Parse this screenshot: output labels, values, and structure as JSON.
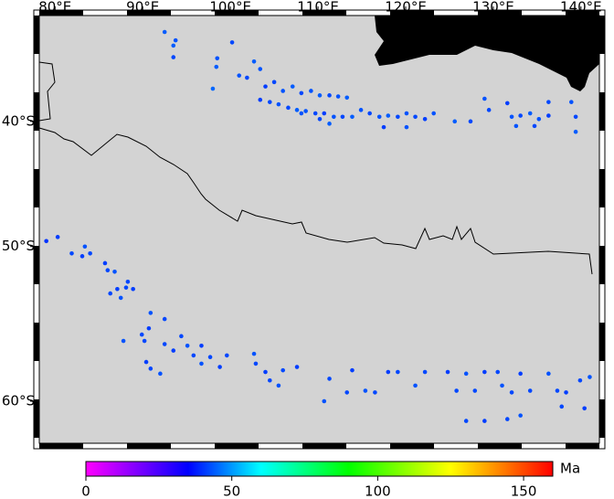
{
  "chart_data": {
    "type": "scatter",
    "xlim": [
      78.2,
      142.1
    ],
    "ylim": [
      -62.3,
      -30.2
    ],
    "xticks": [
      {
        "value": 80,
        "label": "80°E"
      },
      {
        "value": 90,
        "label": "90°E"
      },
      {
        "value": 100,
        "label": "100°E"
      },
      {
        "value": 110,
        "label": "110°E"
      },
      {
        "value": 120,
        "label": "120°E"
      },
      {
        "value": 130,
        "label": "130°E"
      },
      {
        "value": 140,
        "label": "140°E"
      }
    ],
    "yticks": [
      {
        "value": -40,
        "label": "40°S"
      },
      {
        "value": -50,
        "label": "50°S"
      },
      {
        "value": -60,
        "label": "60°S"
      }
    ],
    "x": [
      92.5,
      93.75,
      93.5,
      93.5,
      98.5,
      98.4,
      98.0,
      100.2,
      101.0,
      101.9,
      102.7,
      103.4,
      104.0,
      105.0,
      106.0,
      107.1,
      108.1,
      109.2,
      110.2,
      111.3,
      112.3,
      113.3,
      103.4,
      104.5,
      105.5,
      106.6,
      107.6,
      108.6,
      109.7,
      110.7,
      111.8,
      112.8,
      113.9,
      114.9,
      115.9,
      117.0,
      118.0,
      119.1,
      120.1,
      121.1,
      122.2,
      123.2,
      125.6,
      127.4,
      129.0,
      129.5,
      131.6,
      132.1,
      133.1,
      134.2,
      135.2,
      136.3,
      136.3,
      138.9,
      139.4,
      139.4,
      132.6,
      134.7,
      117.5,
      120.1,
      110.2,
      111.3,
      108.1,
      79.0,
      80.3,
      81.9,
      83.1,
      83.4,
      84.0,
      85.7,
      86.0,
      86.8,
      86.3,
      87.1,
      87.5,
      88.1,
      88.9,
      88.3,
      87.8,
      89.9,
      90.7,
      92.5,
      90.9,
      90.2,
      90.4,
      90.9,
      92.0,
      92.5,
      93.5,
      94.4,
      95.1,
      95.8,
      96.7,
      96.7,
      97.7,
      98.8,
      99.6,
      102.7,
      102.9,
      104.0,
      104.5,
      105.5,
      106.0,
      107.6,
      110.7,
      111.3,
      113.9,
      113.3,
      115.4,
      116.5,
      118.0,
      119.1,
      121.1,
      122.2,
      124.8,
      125.8,
      126.9,
      127.9,
      129.0,
      130.5,
      131.0,
      132.1,
      133.1,
      134.2,
      136.3,
      137.3,
      138.3,
      139.9,
      141.0,
      126.9,
      129.0,
      131.6,
      133.1,
      137.8,
      140.4
    ],
    "y": [
      -31.8,
      -32.6,
      -33.1,
      -34.2,
      -34.3,
      -35.1,
      -37.1,
      -32.8,
      -35.9,
      -36.1,
      -34.6,
      -35.3,
      -36.9,
      -36.5,
      -37.3,
      -36.9,
      -37.5,
      -37.3,
      -37.7,
      -37.7,
      -37.8,
      -37.9,
      -38.1,
      -38.3,
      -38.5,
      -38.8,
      -39.0,
      -39.1,
      -39.3,
      -39.3,
      -39.6,
      -39.6,
      -39.6,
      -39.0,
      -39.3,
      -39.6,
      -39.5,
      -39.6,
      -39.3,
      -39.6,
      -39.8,
      -39.3,
      -40.0,
      -40.0,
      -38.0,
      -39.0,
      -38.4,
      -39.6,
      -39.5,
      -39.3,
      -39.8,
      -38.3,
      -39.5,
      -38.3,
      -39.6,
      -40.9,
      -40.4,
      -40.4,
      -40.5,
      -40.5,
      -39.8,
      -40.2,
      -39.3,
      -49.6,
      -49.3,
      -50.5,
      -50.7,
      -50.0,
      -50.5,
      -51.2,
      -51.7,
      -51.8,
      -53.3,
      -53.0,
      -53.6,
      -52.9,
      -53.0,
      -52.5,
      -56.4,
      -56.0,
      -55.6,
      -55.0,
      -54.6,
      -56.4,
      -57.7,
      -58.1,
      -58.4,
      -56.6,
      -57.0,
      -56.1,
      -56.7,
      -57.3,
      -56.7,
      -57.8,
      -57.4,
      -58.0,
      -57.3,
      -57.2,
      -57.8,
      -58.3,
      -58.8,
      -59.1,
      -58.2,
      -58.0,
      -60.0,
      -58.7,
      -58.2,
      -59.5,
      -59.4,
      -59.5,
      -58.3,
      -58.3,
      -59.1,
      -58.3,
      -58.3,
      -59.4,
      -58.4,
      -59.4,
      -58.3,
      -58.3,
      -59.1,
      -59.5,
      -58.4,
      -59.4,
      -58.4,
      -59.4,
      -59.5,
      -58.8,
      -58.6,
      -61.1,
      -61.1,
      -61.0,
      -60.8,
      -60.3,
      -60.4
    ],
    "values": [
      44,
      43,
      44,
      42,
      43,
      44,
      45,
      42,
      43,
      42,
      44,
      43,
      41,
      42,
      43,
      44,
      42,
      43,
      44,
      42,
      43,
      44,
      41,
      42,
      43,
      42,
      44,
      43,
      42,
      41,
      43,
      42,
      44,
      43,
      42,
      43,
      44,
      42,
      43,
      42,
      41,
      43,
      44,
      42,
      43,
      42,
      41,
      43,
      42,
      44,
      43,
      42,
      41,
      43,
      42,
      44,
      43,
      42,
      41,
      43,
      42,
      44,
      43,
      40,
      41,
      42,
      41,
      43,
      42,
      41,
      42,
      43,
      42,
      41,
      43,
      42,
      41,
      42,
      43,
      42,
      41,
      42,
      43,
      42,
      41,
      42,
      43,
      42,
      41,
      42,
      43,
      42,
      41,
      43,
      42,
      41,
      42,
      43,
      42,
      41,
      42,
      43,
      42,
      41,
      43,
      42,
      41,
      42,
      43,
      42,
      41,
      42,
      43,
      42,
      41,
      42,
      43,
      42,
      41,
      42,
      43,
      42,
      41,
      42,
      43,
      42,
      41,
      42,
      43,
      42,
      41,
      42,
      43,
      42,
      41
    ],
    "colormap": [
      [
        0,
        "#ff00ff"
      ],
      [
        35,
        "#0000ff"
      ],
      [
        60,
        "#00ffff"
      ],
      [
        90,
        "#00ff00"
      ],
      [
        125,
        "#ffff00"
      ],
      [
        160,
        "#ff0000"
      ]
    ],
    "clim": [
      0,
      160
    ],
    "colorbar_ticks": [
      0,
      50,
      100,
      150
    ],
    "colorbar_label": "Ma"
  }
}
